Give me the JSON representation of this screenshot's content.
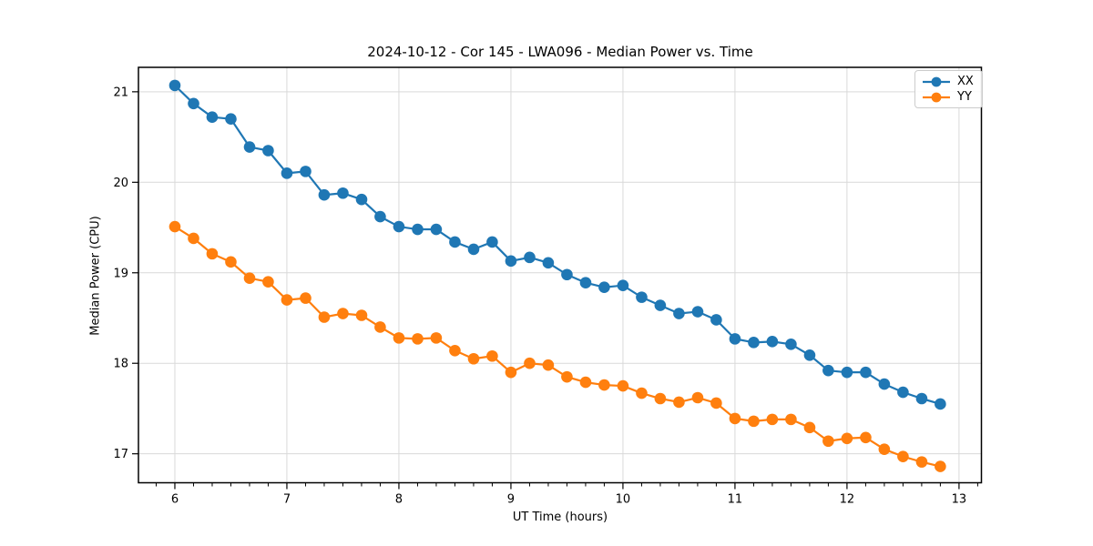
{
  "chart": {
    "title": "2024-10-12 - Cor 145 - LWA096 - Median Power vs. Time",
    "xlabel": "UT Time (hours)",
    "ylabel": "Median Power (CPU)"
  },
  "chart_data": {
    "type": "line",
    "title": "2024-10-12 - Cor 145 - LWA096 - Median Power vs. Time",
    "xlabel": "UT Time (hours)",
    "ylabel": "Median Power (CPU)",
    "x": [
      6.0,
      6.167,
      6.333,
      6.5,
      6.667,
      6.833,
      7.0,
      7.167,
      7.333,
      7.5,
      7.667,
      7.833,
      8.0,
      8.167,
      8.333,
      8.5,
      8.667,
      8.833,
      9.0,
      9.167,
      9.333,
      9.5,
      9.667,
      9.833,
      10.0,
      10.167,
      10.333,
      10.5,
      10.667,
      10.833,
      11.0,
      11.167,
      11.333,
      11.5,
      11.667,
      11.833,
      12.0,
      12.167,
      12.333,
      12.5,
      12.667,
      12.833
    ],
    "series": [
      {
        "name": "XX",
        "color": "#1f77b4",
        "values": [
          21.07,
          20.87,
          20.72,
          20.7,
          20.39,
          20.35,
          20.1,
          20.12,
          19.86,
          19.88,
          19.81,
          19.62,
          19.51,
          19.48,
          19.48,
          19.34,
          19.26,
          19.34,
          19.13,
          19.17,
          19.11,
          18.98,
          18.89,
          18.84,
          18.86,
          18.73,
          18.64,
          18.55,
          18.57,
          18.48,
          18.27,
          18.23,
          18.24,
          18.21,
          18.09,
          17.92,
          17.9,
          17.9,
          17.77,
          17.68,
          17.61,
          17.55
        ]
      },
      {
        "name": "YY",
        "color": "#ff7f0e",
        "values": [
          19.51,
          19.38,
          19.21,
          19.12,
          18.94,
          18.9,
          18.7,
          18.72,
          18.51,
          18.55,
          18.53,
          18.4,
          18.28,
          18.27,
          18.28,
          18.14,
          18.05,
          18.08,
          17.9,
          18.0,
          17.98,
          17.85,
          17.79,
          17.76,
          17.75,
          17.67,
          17.61,
          17.57,
          17.62,
          17.56,
          17.39,
          17.36,
          17.38,
          17.38,
          17.29,
          17.14,
          17.17,
          17.18,
          17.05,
          16.97,
          16.91,
          16.86
        ]
      }
    ],
    "xlim": [
      5.675,
      13.2
    ],
    "ylim": [
      16.68,
      21.27
    ],
    "xticks": [
      6,
      7,
      8,
      9,
      10,
      11,
      12,
      13
    ],
    "yticks": [
      17,
      18,
      19,
      20,
      21
    ],
    "minor_xtick_step": 0.1667,
    "grid": true,
    "grid_color": "#d9d9d9",
    "legend_position": "upper right"
  }
}
